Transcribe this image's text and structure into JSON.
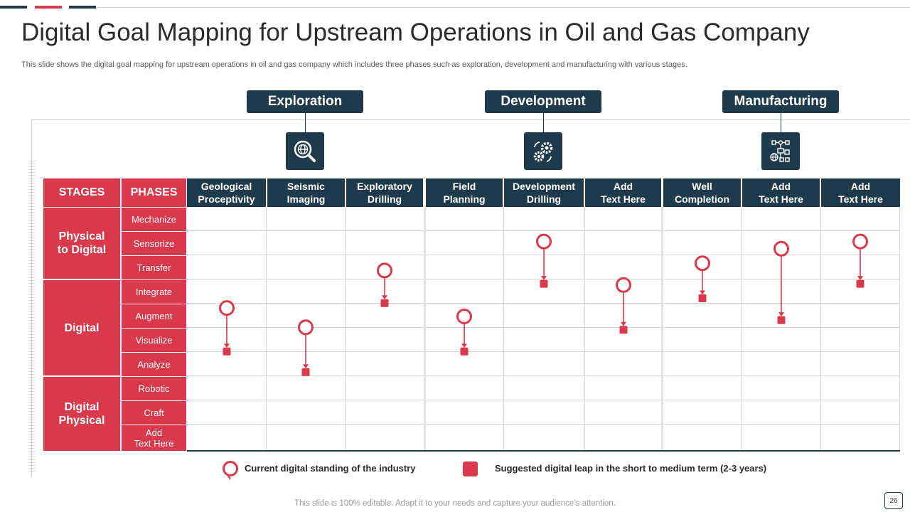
{
  "slide": {
    "title": "Digital Goal Mapping for Upstream Operations in Oil and Gas Company",
    "subtitle": "This slide shows the digital goal mapping for upstream operations in oil and gas company which includes three phases such as exploration, development and manufacturing with various stages.",
    "footer": "This slide is 100% editable. Adapt it to your needs and capture your audience’s attention.",
    "page_number": "26"
  },
  "phases": [
    {
      "label": "Exploration",
      "icon": "magnifier-globe-icon"
    },
    {
      "label": "Development",
      "icon": "gears-icon"
    },
    {
      "label": "Manufacturing",
      "icon": "flowchart-network-icon"
    }
  ],
  "table": {
    "stages_header": "STAGES",
    "phases_header": "PHASES",
    "columns": [
      {
        "line1": "Geological",
        "line2": "Proceptivity"
      },
      {
        "line1": "Seismic",
        "line2": "Imaging"
      },
      {
        "line1": "Exploratory",
        "line2": "Drilling"
      },
      {
        "line1": "Field",
        "line2": "Planning"
      },
      {
        "line1": "Development",
        "line2": "Drilling"
      },
      {
        "line1": "Add",
        "line2": "Text Here"
      },
      {
        "line1": "Well",
        "line2": "Completion"
      },
      {
        "line1": "Add",
        "line2": "Text Here"
      },
      {
        "line1": "Add",
        "line2": "Text Here"
      }
    ],
    "stages": [
      {
        "line1": "Physical",
        "line2": "to Digital"
      },
      {
        "line1": "Digital",
        "line2": ""
      },
      {
        "line1": "Digital",
        "line2": "Physical"
      }
    ],
    "rows": [
      {
        "line1": "Mechanize",
        "line2": ""
      },
      {
        "line1": "Sensorize",
        "line2": ""
      },
      {
        "line1": "Transfer",
        "line2": ""
      },
      {
        "line1": "Integrate",
        "line2": ""
      },
      {
        "line1": "Augment",
        "line2": ""
      },
      {
        "line1": "Visualize",
        "line2": ""
      },
      {
        "line1": "Analyze",
        "line2": ""
      },
      {
        "line1": "Robotic",
        "line2": ""
      },
      {
        "line1": "Craft",
        "line2": ""
      },
      {
        "line1": "Add",
        "line2": "Text Here"
      }
    ]
  },
  "mapping": [
    {
      "column": 0,
      "current": 4.15,
      "target": 5.95
    },
    {
      "column": 1,
      "current": 4.95,
      "target": 6.8
    },
    {
      "column": 2,
      "current": 2.6,
      "target": 3.95
    },
    {
      "column": 3,
      "current": 4.5,
      "target": 5.95
    },
    {
      "column": 4,
      "current": 1.4,
      "target": 3.15
    },
    {
      "column": 5,
      "current": 3.2,
      "target": 5.05
    },
    {
      "column": 6,
      "current": 2.3,
      "target": 3.75
    },
    {
      "column": 7,
      "current": 1.7,
      "target": 4.65
    },
    {
      "column": 8,
      "current": 1.4,
      "target": 3.15
    }
  ],
  "legend": {
    "current": "Current digital standing of the industry",
    "suggested": "Suggested digital leap in the short to medium term (2-3 years)"
  },
  "colors": {
    "navy": "#1f3a4a",
    "red": "#d8394b"
  }
}
